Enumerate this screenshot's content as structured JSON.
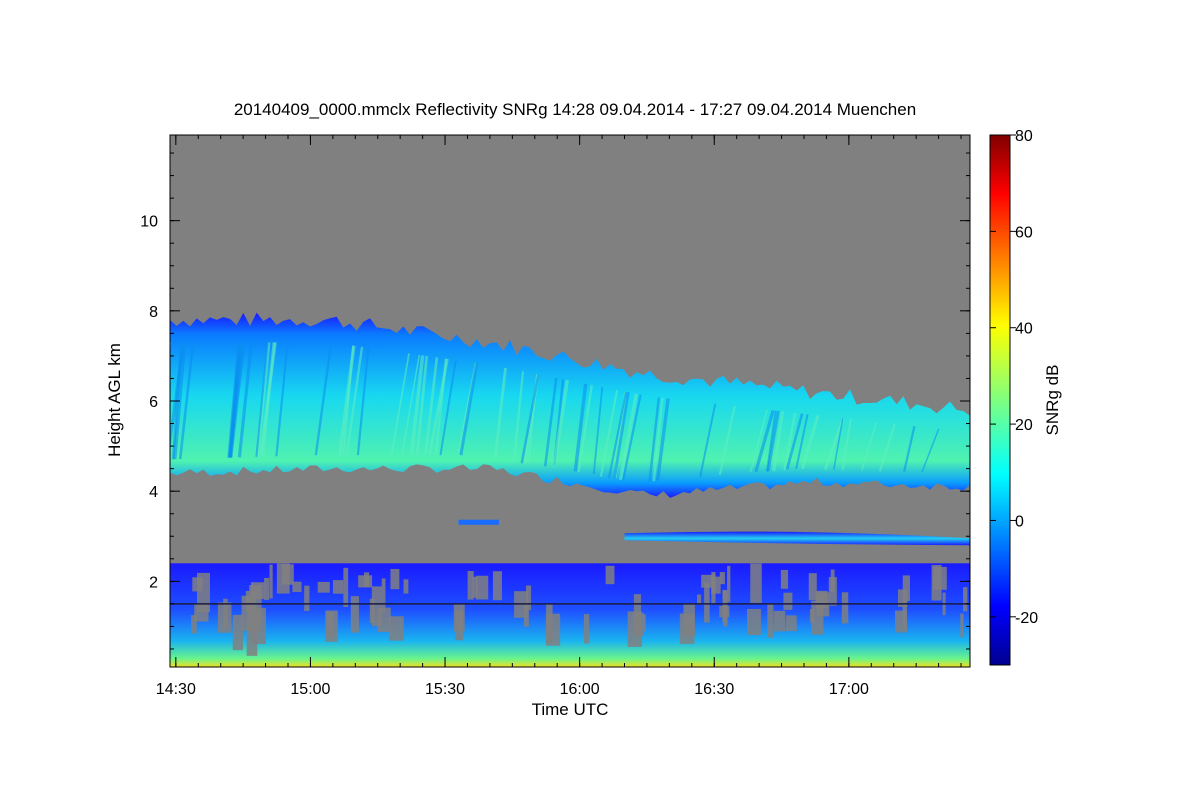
{
  "chart_data": {
    "type": "heatmap",
    "title": "20140409_0000.mmclx Reflectivity SNRg   14:28 09.04.2014 - 17:27 09.04.2014 Muenchen",
    "xlabel": "Time UTC",
    "ylabel": "Height AGL km",
    "x_ticks": [
      "14:30",
      "15:00",
      "15:30",
      "16:00",
      "16:30",
      "17:00"
    ],
    "xlim": [
      "14:30",
      "17:27"
    ],
    "y_ticks": [
      2,
      4,
      6,
      8,
      10
    ],
    "ylim": [
      0.1,
      11.9
    ],
    "colorbar": {
      "label": "SNRg dB",
      "ticks": [
        -20,
        0,
        20,
        40,
        60,
        80
      ],
      "range": [
        -30,
        80
      ],
      "colormap": "jet"
    },
    "background_color": "#808080",
    "layers": [
      {
        "kind": "cloud",
        "time_start": "14:30",
        "time_end": "17:27",
        "top_km": [
          7.8,
          7.8,
          7.3,
          6.6,
          6.2,
          5.8
        ],
        "base_km": [
          4.4,
          4.5,
          4.5,
          3.9,
          4.2,
          4.1
        ],
        "peak_snr_db": 20
      },
      {
        "kind": "thin_layer",
        "time_start": "16:10",
        "time_end": "17:27",
        "height_km": 3.0,
        "peak_snr_db": 10
      },
      {
        "kind": "boundary_layer",
        "time_start": "14:30",
        "time_end": "17:27",
        "top_km": 2.4,
        "peak_snr_db": 40
      },
      {
        "kind": "reference_line",
        "height_km": 1.5
      }
    ]
  }
}
